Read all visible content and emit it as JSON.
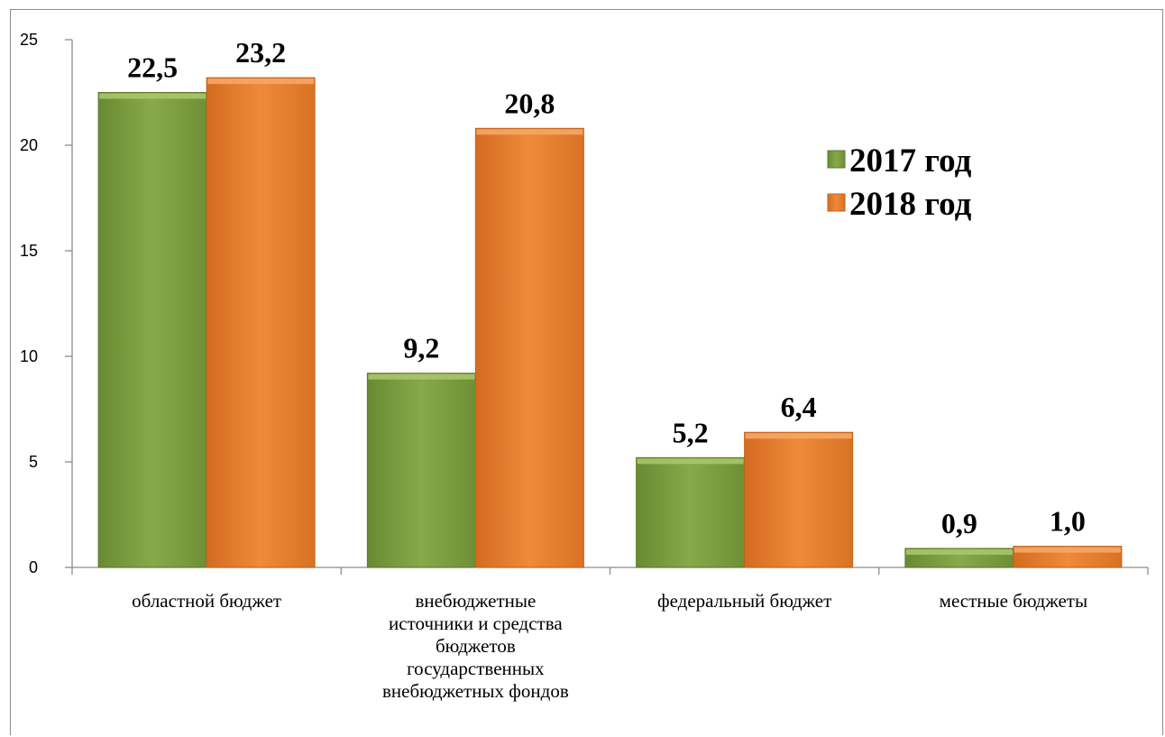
{
  "chart_data": {
    "type": "bar",
    "categories": [
      [
        "областной бюджет"
      ],
      [
        "внебюджетные",
        "источники и средства",
        "бюджетов",
        "государственных",
        "внебюджетных фондов"
      ],
      [
        "федеральный бюджет"
      ],
      [
        "местные бюджеты"
      ]
    ],
    "series": [
      {
        "name": "2017 год",
        "color": "#7a9a3f",
        "values": [
          22.5,
          9.2,
          5.2,
          0.9
        ],
        "labels": [
          "22,5",
          "9,2",
          "5,2",
          "0,9"
        ]
      },
      {
        "name": "2018 год",
        "color": "#e07a2c",
        "values": [
          23.2,
          20.8,
          6.4,
          1.0
        ],
        "labels": [
          "23,2",
          "20,8",
          "6,4",
          "1,0"
        ]
      }
    ],
    "yticks": [
      "0",
      "5",
      "10",
      "15",
      "20",
      "25"
    ],
    "ylim": [
      0,
      25
    ],
    "legend": "right-upper",
    "grid": false
  }
}
